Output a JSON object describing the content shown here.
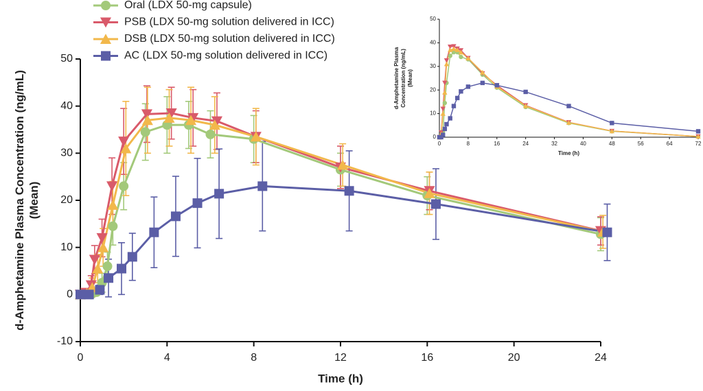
{
  "chart_data": [
    {
      "type": "line",
      "xlabel": "Time (h)",
      "ylabel": [
        "d-Amphetamine Plasma Concentration (ng/mL)",
        "(Mean)"
      ],
      "xlim": [
        0,
        24
      ],
      "xticks": [
        0,
        4,
        8,
        12,
        16,
        20,
        24
      ],
      "ylim": [
        -10,
        50
      ],
      "yticks": [
        -10,
        0,
        10,
        20,
        30,
        40,
        50
      ],
      "legend": "top",
      "series": [
        {
          "name": "Oral (LDX 50-mg capsule)",
          "color": "#a3c97a",
          "marker": "circle",
          "x": [
            0,
            0.5,
            0.75,
            1,
            1.25,
            1.5,
            2,
            3,
            4,
            5,
            6,
            8,
            12,
            16,
            24
          ],
          "values": [
            0,
            0,
            0.5,
            2.5,
            6,
            14.5,
            23,
            34.5,
            36,
            36,
            34,
            33,
            26.5,
            21,
            12.8
          ],
          "errors": [
            0,
            0,
            0.5,
            2,
            3,
            4,
            5,
            6,
            6,
            5,
            5,
            5,
            3.5,
            4,
            3.5
          ]
        },
        {
          "name": "PSB (LDX 50-mg solution delivered in ICC)",
          "color": "#d95a6a",
          "marker": "triangle-down",
          "x": [
            0,
            0.25,
            0.5,
            0.66,
            1,
            1.46,
            2,
            3.07,
            4.2,
            5.2,
            6.3,
            8.1,
            12,
            16.1,
            24
          ],
          "values": [
            0,
            0.4,
            2,
            7.4,
            12,
            23,
            32.5,
            38.3,
            38.5,
            37.5,
            36.8,
            33.5,
            27,
            22,
            13.5
          ],
          "errors": [
            0,
            0.5,
            2,
            3,
            4,
            6,
            7,
            6,
            5.5,
            6,
            6,
            5.5,
            4.5,
            4,
            3
          ]
        },
        {
          "name": "DSB (LDX 50-mg solution delivered in ICC)",
          "color": "#f2b84b",
          "marker": "triangle-up",
          "x": [
            0,
            0.3,
            0.55,
            0.8,
            1.05,
            1.5,
            2.1,
            3.1,
            4.1,
            5.1,
            6.2,
            8.1,
            12.1,
            16.1,
            24.1
          ],
          "values": [
            0,
            0.3,
            1.5,
            5.5,
            10,
            19,
            31,
            37,
            37.5,
            37,
            36,
            33.5,
            27.5,
            21.5,
            13.3
          ],
          "errors": [
            0,
            0.5,
            2,
            3,
            4,
            5,
            10,
            7,
            6,
            7,
            6,
            6,
            4.5,
            4.5,
            3.5
          ]
        },
        {
          "name": "AC (LDX 50-mg solution delivered in ICC)",
          "color": "#5b5ea6",
          "marker": "square",
          "x": [
            0,
            0.4,
            0.9,
            1.3,
            1.9,
            2.4,
            3.4,
            4.4,
            5.4,
            6.4,
            8.4,
            12.4,
            16.4,
            24.3
          ],
          "values": [
            0,
            0,
            1,
            3.5,
            5.5,
            8,
            13.2,
            16.6,
            19.4,
            21.4,
            23,
            22,
            19.2,
            13.2
          ],
          "errors": [
            0,
            0,
            1,
            4,
            5.5,
            5,
            7.5,
            8.5,
            9.5,
            9.5,
            9.5,
            8.5,
            7.5,
            6
          ]
        }
      ]
    },
    {
      "type": "line",
      "xlabel": "Time (h)",
      "ylabel": [
        "d-Amphetamine Plasma",
        "Concentration (ng/mL)",
        "(Mean)"
      ],
      "xlim": [
        0,
        72
      ],
      "xticks": [
        0,
        8,
        16,
        24,
        32,
        40,
        48,
        56,
        64,
        72
      ],
      "ylim": [
        0,
        50
      ],
      "yticks": [
        0,
        10,
        20,
        30,
        40,
        50
      ],
      "series": [
        {
          "color": "#a3c97a",
          "marker": "circle",
          "x": [
            0,
            0.5,
            1,
            1.5,
            2,
            3,
            4,
            5,
            6,
            8,
            12,
            16,
            24,
            36,
            48,
            72
          ],
          "values": [
            0,
            0,
            2.5,
            14.5,
            23,
            34.5,
            36,
            36,
            34,
            33,
            26.5,
            21,
            12.8,
            6,
            2.5,
            0.3
          ]
        },
        {
          "color": "#d95a6a",
          "marker": "triangle-down",
          "x": [
            0,
            0.5,
            1,
            1.5,
            2,
            3,
            4,
            5,
            6,
            8,
            12,
            16,
            24,
            36,
            48,
            72
          ],
          "values": [
            0,
            2,
            12,
            23,
            32.5,
            38.3,
            38.5,
            37.5,
            36.8,
            33.5,
            27,
            22,
            13.5,
            6.3,
            2.6,
            0.3
          ]
        },
        {
          "color": "#f2b84b",
          "marker": "triangle-up",
          "x": [
            0,
            0.5,
            1,
            1.5,
            2,
            3,
            4,
            5,
            6,
            8,
            12,
            16,
            24,
            36,
            48,
            72
          ],
          "values": [
            0,
            1.5,
            10,
            19,
            31,
            37,
            37.5,
            37,
            36,
            33.5,
            27.5,
            21.5,
            13.3,
            6.2,
            2.6,
            0.3
          ]
        },
        {
          "color": "#5b5ea6",
          "marker": "square",
          "x": [
            0,
            0.5,
            1,
            1.5,
            2,
            3,
            4,
            5,
            6,
            8,
            12,
            16,
            24,
            36,
            48,
            72
          ],
          "values": [
            0,
            0,
            1,
            3.5,
            5.5,
            8,
            13.2,
            16.6,
            19.4,
            21.4,
            23,
            22,
            19.2,
            13.2,
            6,
            2.5
          ]
        }
      ]
    }
  ]
}
